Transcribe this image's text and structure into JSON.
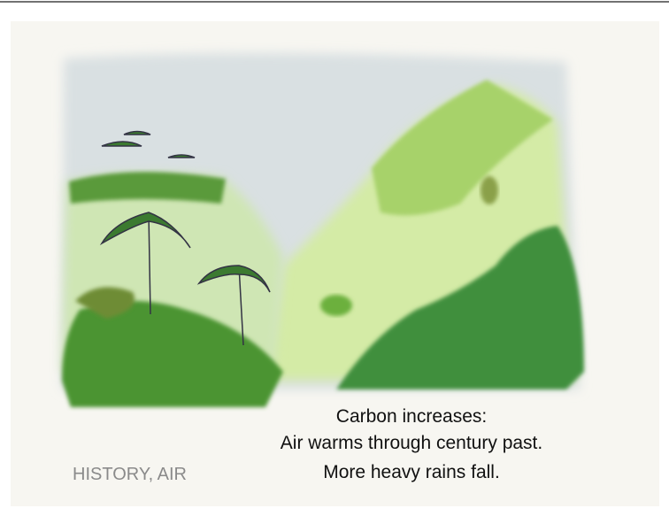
{
  "caption": {
    "lines": [
      "Carbon increases:",
      "Air warms through century past.",
      "More heavy rains fall."
    ]
  },
  "label": "HISTORY, AIR"
}
